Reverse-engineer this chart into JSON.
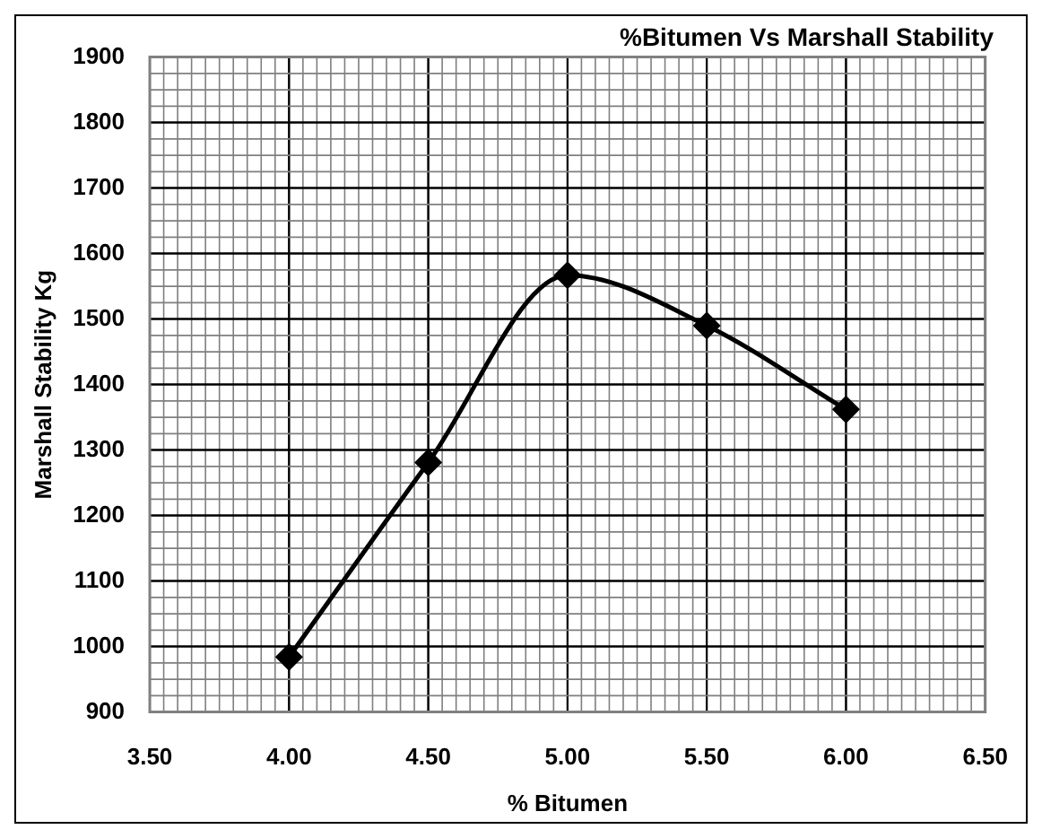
{
  "chart_data": {
    "type": "line",
    "title": "%Bitumen Vs Marshall Stability",
    "xlabel": "% Bitumen",
    "ylabel": "Marshall Stability Kg",
    "x": [
      4.0,
      4.5,
      5.0,
      5.5,
      6.0
    ],
    "series": [
      {
        "color": "#000000",
        "values": [
          984,
          1281,
          1567,
          1490,
          1362
        ]
      }
    ],
    "xlim": [
      3.5,
      6.5
    ],
    "xticks": [
      {
        "value": 3.5,
        "label": "3.50"
      },
      {
        "value": 4.0,
        "label": "4.00"
      },
      {
        "value": 4.5,
        "label": "4.50"
      },
      {
        "value": 5.0,
        "label": "5.00"
      },
      {
        "value": 5.5,
        "label": "5.50"
      },
      {
        "value": 6.0,
        "label": "6.00"
      },
      {
        "value": 6.5,
        "label": "6.50"
      }
    ],
    "ylim": [
      900,
      1900
    ],
    "yticks": [
      900,
      1000,
      1100,
      1200,
      1300,
      1400,
      1500,
      1600,
      1700,
      1800,
      1900
    ],
    "grid": true,
    "marker": "diamond",
    "line_style": "solid",
    "legend": false
  }
}
